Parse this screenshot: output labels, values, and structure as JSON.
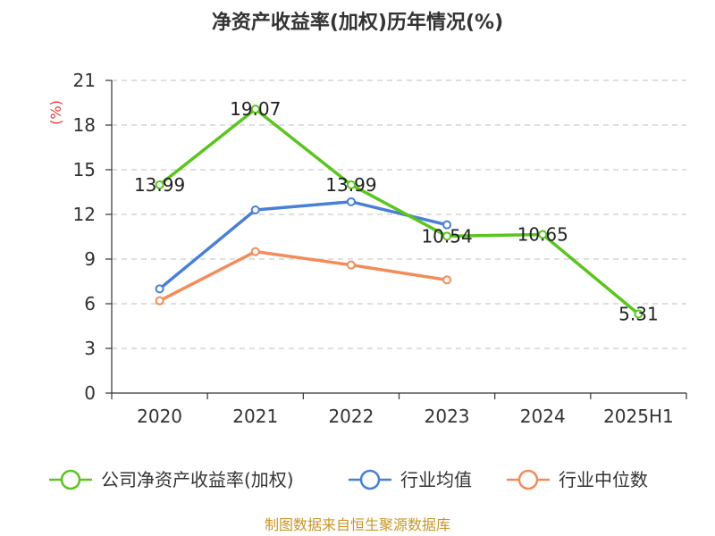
{
  "chart_data": {
    "type": "line",
    "title": "净资产收益率(加权)历年情况(%)",
    "ylabel": "(%)",
    "categories": [
      "2020",
      "2021",
      "2022",
      "2023",
      "2024",
      "2025H1"
    ],
    "ylim": [
      0,
      21
    ],
    "yticks": [
      "0",
      "3",
      "6",
      "9",
      "12",
      "15",
      "18",
      "21"
    ],
    "grid": true,
    "legend_position": "bottom",
    "series": [
      {
        "name": "公司净资产收益率(加权)",
        "color": "#5bc51f",
        "values": [
          13.99,
          19.07,
          13.99,
          10.54,
          10.65,
          5.31
        ],
        "labels": [
          "13.99",
          "19.07",
          "13.99",
          "10.54",
          "10.65",
          "5.31"
        ]
      },
      {
        "name": "行业均值",
        "color": "#4a7fd6",
        "values": [
          7.0,
          12.3,
          12.85,
          11.3,
          null,
          null
        ]
      },
      {
        "name": "行业中位数",
        "color": "#f28c5a",
        "values": [
          6.2,
          9.5,
          8.6,
          7.6,
          null,
          null
        ]
      }
    ]
  },
  "footer": {
    "source": "制图数据来自恒生聚源数据库"
  }
}
